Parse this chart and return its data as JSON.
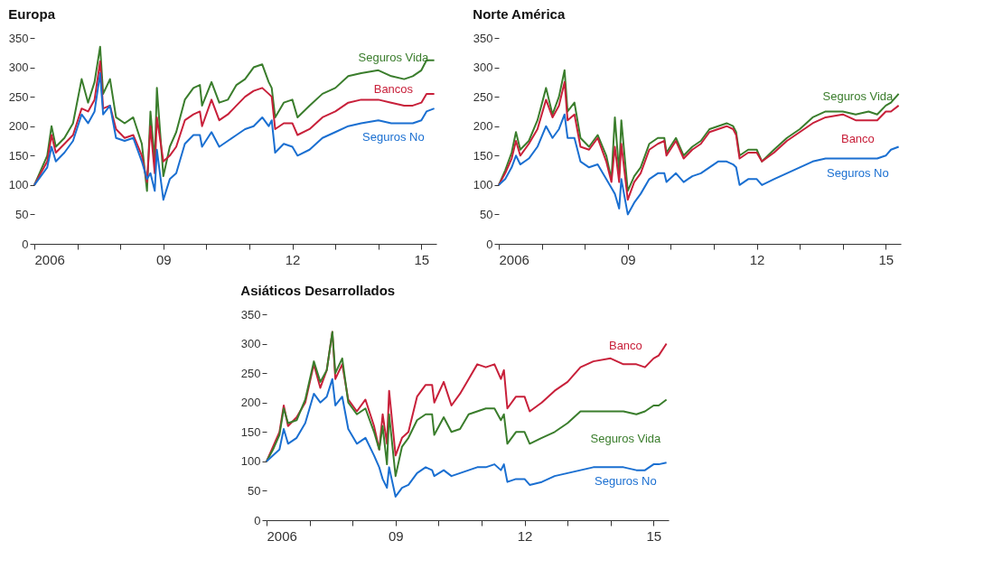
{
  "chart_data": [
    {
      "type": "line",
      "title": "Europa",
      "x": [
        2006,
        2006.15,
        2006.3,
        2006.4,
        2006.5,
        2006.7,
        2006.9,
        2007.1,
        2007.25,
        2007.4,
        2007.53,
        2007.6,
        2007.76,
        2007.9,
        2008.1,
        2008.3,
        2008.5,
        2008.62,
        2008.7,
        2008.8,
        2008.85,
        2009.0,
        2009.15,
        2009.3,
        2009.5,
        2009.7,
        2009.85,
        2009.9,
        2010.12,
        2010.3,
        2010.5,
        2010.7,
        2010.9,
        2011.1,
        2011.3,
        2011.45,
        2011.52,
        2011.6,
        2011.8,
        2012.0,
        2012.12,
        2012.4,
        2012.7,
        2013.0,
        2013.3,
        2013.6,
        2014.0,
        2014.3,
        2014.6,
        2014.8,
        2015.0,
        2015.12,
        2015.3
      ],
      "series": [
        {
          "name": "Seguros Vida",
          "color": "#3a7d2c",
          "values": [
            100,
            125,
            150,
            200,
            165,
            180,
            205,
            280,
            240,
            275,
            335,
            255,
            280,
            215,
            205,
            215,
            170,
            90,
            225,
            140,
            265,
            115,
            165,
            190,
            245,
            265,
            270,
            235,
            275,
            240,
            245,
            270,
            280,
            300,
            305,
            275,
            265,
            215,
            240,
            245,
            215,
            235,
            255,
            265,
            285,
            290,
            295,
            285,
            280,
            285,
            295,
            312,
            312
          ]
        },
        {
          "name": "Bancos",
          "color": "#c8203a",
          "values": [
            100,
            120,
            140,
            185,
            155,
            170,
            185,
            230,
            225,
            245,
            310,
            230,
            235,
            195,
            180,
            185,
            150,
            105,
            200,
            120,
            215,
            140,
            150,
            165,
            210,
            220,
            225,
            200,
            245,
            210,
            220,
            235,
            250,
            260,
            265,
            255,
            250,
            195,
            205,
            205,
            185,
            195,
            215,
            225,
            240,
            245,
            245,
            240,
            235,
            235,
            240,
            255,
            255
          ]
        },
        {
          "name": "Seguros No",
          "color": "#1a6fd1",
          "values": [
            100,
            115,
            130,
            165,
            140,
            155,
            175,
            220,
            205,
            225,
            290,
            220,
            235,
            180,
            175,
            180,
            140,
            110,
            120,
            90,
            160,
            75,
            110,
            120,
            170,
            185,
            185,
            165,
            190,
            165,
            175,
            185,
            195,
            200,
            215,
            200,
            210,
            155,
            170,
            165,
            150,
            160,
            180,
            190,
            200,
            205,
            210,
            205,
            205,
            205,
            210,
            225,
            230
          ]
        }
      ],
      "xlim": [
        2006,
        2015.35
      ],
      "xticks": [
        {
          "value": 2006,
          "label": "2006"
        },
        {
          "value": 2007,
          "label": null
        },
        {
          "value": 2008,
          "label": null
        },
        {
          "value": 2009,
          "label": "09"
        },
        {
          "value": 2010,
          "label": null
        },
        {
          "value": 2011,
          "label": null
        },
        {
          "value": 2012,
          "label": "12"
        },
        {
          "value": 2013,
          "label": null
        },
        {
          "value": 2014,
          "label": null
        },
        {
          "value": 2015,
          "label": "15"
        }
      ],
      "ylim": [
        0,
        350
      ],
      "yticks": [
        0,
        50,
        100,
        150,
        200,
        250,
        300,
        350
      ]
    },
    {
      "type": "line",
      "title": "Norte América",
      "x": [
        2006,
        2006.15,
        2006.3,
        2006.4,
        2006.5,
        2006.7,
        2006.9,
        2007.1,
        2007.25,
        2007.4,
        2007.53,
        2007.6,
        2007.76,
        2007.9,
        2008.1,
        2008.3,
        2008.5,
        2008.62,
        2008.7,
        2008.8,
        2008.85,
        2009.0,
        2009.15,
        2009.3,
        2009.5,
        2009.7,
        2009.85,
        2009.9,
        2010.12,
        2010.3,
        2010.5,
        2010.7,
        2010.9,
        2011.1,
        2011.3,
        2011.45,
        2011.52,
        2011.6,
        2011.8,
        2012.0,
        2012.12,
        2012.4,
        2012.7,
        2013.0,
        2013.3,
        2013.6,
        2014.0,
        2014.3,
        2014.6,
        2014.8,
        2015.0,
        2015.12,
        2015.3
      ],
      "series": [
        {
          "name": "Seguros Vida",
          "color": "#3a7d2c",
          "values": [
            100,
            125,
            155,
            190,
            160,
            175,
            210,
            265,
            220,
            250,
            295,
            225,
            240,
            180,
            165,
            185,
            150,
            110,
            215,
            120,
            210,
            90,
            115,
            130,
            170,
            180,
            180,
            155,
            180,
            150,
            165,
            175,
            195,
            200,
            205,
            200,
            190,
            150,
            160,
            160,
            140,
            160,
            180,
            195,
            215,
            225,
            225,
            220,
            225,
            220,
            235,
            240,
            255
          ]
        },
        {
          "name": "Banco",
          "color": "#c8203a",
          "values": [
            100,
            120,
            145,
            175,
            150,
            170,
            195,
            245,
            215,
            235,
            275,
            210,
            220,
            165,
            160,
            180,
            140,
            105,
            165,
            105,
            170,
            75,
            105,
            120,
            160,
            170,
            175,
            150,
            175,
            145,
            160,
            170,
            190,
            195,
            200,
            195,
            185,
            145,
            155,
            155,
            140,
            155,
            175,
            190,
            205,
            215,
            220,
            210,
            210,
            210,
            225,
            225,
            235
          ]
        },
        {
          "name": "Seguros No",
          "color": "#1a6fd1",
          "values": [
            100,
            110,
            130,
            150,
            135,
            145,
            165,
            200,
            180,
            195,
            220,
            180,
            180,
            140,
            130,
            135,
            110,
            95,
            85,
            60,
            110,
            50,
            70,
            85,
            110,
            120,
            120,
            105,
            120,
            105,
            115,
            120,
            130,
            140,
            140,
            135,
            130,
            100,
            110,
            110,
            100,
            110,
            120,
            130,
            140,
            145,
            145,
            145,
            145,
            145,
            150,
            160,
            165
          ]
        }
      ],
      "xlim": [
        2006,
        2015.35
      ],
      "xticks": [
        {
          "value": 2006,
          "label": "2006"
        },
        {
          "value": 2007,
          "label": null
        },
        {
          "value": 2008,
          "label": null
        },
        {
          "value": 2009,
          "label": "09"
        },
        {
          "value": 2010,
          "label": null
        },
        {
          "value": 2011,
          "label": null
        },
        {
          "value": 2012,
          "label": "12"
        },
        {
          "value": 2013,
          "label": null
        },
        {
          "value": 2014,
          "label": null
        },
        {
          "value": 2015,
          "label": "15"
        }
      ],
      "ylim": [
        0,
        350
      ],
      "yticks": [
        0,
        50,
        100,
        150,
        200,
        250,
        300,
        350
      ]
    },
    {
      "type": "line",
      "title": "Asiáticos Desarrollados",
      "x": [
        2006,
        2006.15,
        2006.3,
        2006.4,
        2006.5,
        2006.7,
        2006.9,
        2007.1,
        2007.25,
        2007.4,
        2007.53,
        2007.6,
        2007.76,
        2007.9,
        2008.1,
        2008.3,
        2008.5,
        2008.62,
        2008.7,
        2008.8,
        2008.85,
        2009.0,
        2009.15,
        2009.3,
        2009.5,
        2009.7,
        2009.85,
        2009.9,
        2010.12,
        2010.3,
        2010.5,
        2010.7,
        2010.9,
        2011.1,
        2011.3,
        2011.45,
        2011.52,
        2011.6,
        2011.8,
        2012.0,
        2012.12,
        2012.4,
        2012.7,
        2013.0,
        2013.3,
        2013.6,
        2014.0,
        2014.3,
        2014.6,
        2014.8,
        2015.0,
        2015.12,
        2015.3
      ],
      "series": [
        {
          "name": "Banco",
          "color": "#c8203a",
          "values": [
            100,
            125,
            150,
            195,
            160,
            175,
            200,
            265,
            225,
            255,
            320,
            240,
            265,
            205,
            185,
            205,
            160,
            120,
            180,
            130,
            220,
            110,
            140,
            150,
            210,
            230,
            230,
            200,
            235,
            195,
            215,
            240,
            265,
            260,
            265,
            240,
            255,
            190,
            210,
            210,
            185,
            200,
            220,
            235,
            260,
            270,
            275,
            265,
            265,
            260,
            275,
            280,
            300
          ]
        },
        {
          "name": "Seguros Vida",
          "color": "#3a7d2c",
          "values": [
            100,
            120,
            145,
            190,
            165,
            170,
            205,
            270,
            235,
            255,
            320,
            250,
            275,
            200,
            180,
            190,
            150,
            120,
            160,
            95,
            180,
            75,
            125,
            140,
            170,
            180,
            180,
            145,
            175,
            150,
            155,
            180,
            185,
            190,
            190,
            170,
            180,
            130,
            150,
            150,
            130,
            140,
            150,
            165,
            185,
            185,
            185,
            185,
            180,
            185,
            195,
            195,
            205
          ]
        },
        {
          "name": "Seguros No",
          "color": "#1a6fd1",
          "values": [
            100,
            110,
            120,
            155,
            130,
            140,
            165,
            215,
            200,
            210,
            240,
            195,
            210,
            155,
            130,
            140,
            110,
            90,
            70,
            55,
            90,
            40,
            55,
            60,
            80,
            90,
            85,
            75,
            85,
            75,
            80,
            85,
            90,
            90,
            95,
            85,
            95,
            65,
            70,
            70,
            60,
            65,
            75,
            80,
            85,
            90,
            90,
            90,
            85,
            85,
            95,
            95,
            98
          ]
        }
      ],
      "xlim": [
        2006,
        2015.35
      ],
      "xticks": [
        {
          "value": 2006,
          "label": "2006"
        },
        {
          "value": 2007,
          "label": null
        },
        {
          "value": 2008,
          "label": null
        },
        {
          "value": 2009,
          "label": "09"
        },
        {
          "value": 2010,
          "label": null
        },
        {
          "value": 2011,
          "label": null
        },
        {
          "value": 2012,
          "label": "12"
        },
        {
          "value": 2013,
          "label": null
        },
        {
          "value": 2014,
          "label": null
        },
        {
          "value": 2015,
          "label": "15"
        }
      ],
      "ylim": [
        0,
        350
      ],
      "yticks": [
        0,
        50,
        100,
        150,
        200,
        250,
        300,
        350
      ]
    }
  ]
}
